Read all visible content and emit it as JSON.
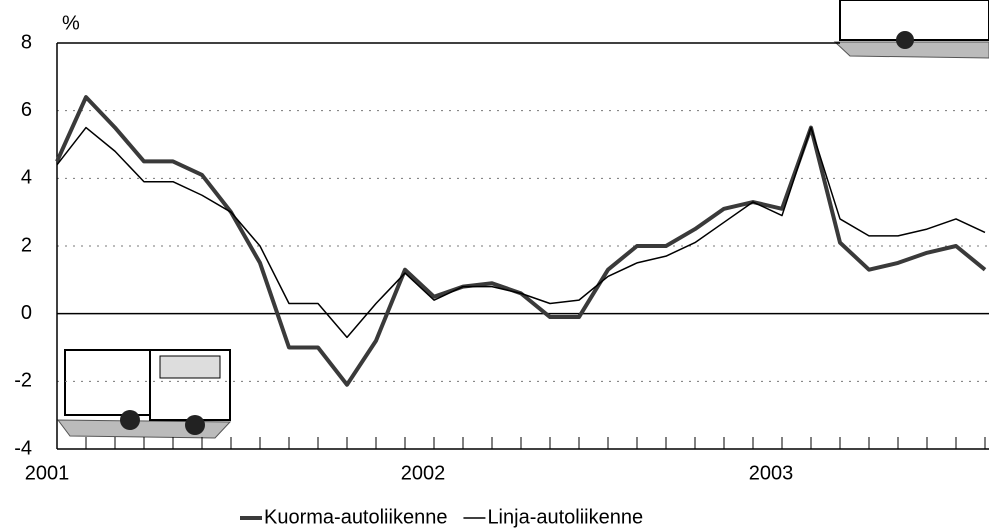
{
  "chart_data": {
    "type": "line",
    "y_label": "%",
    "categories": [
      "2001",
      null,
      null,
      null,
      null,
      null,
      null,
      null,
      null,
      null,
      null,
      null,
      "2002",
      null,
      null,
      null,
      null,
      null,
      null,
      null,
      null,
      null,
      null,
      null,
      "2003",
      null,
      null,
      null,
      null,
      null,
      null,
      null,
      null
    ],
    "series": [
      {
        "name": "Kuorma-autoliikenne",
        "color": "#3a3a3a",
        "values": [
          4.5,
          6.4,
          5.5,
          4.5,
          4.5,
          4.1,
          3.0,
          1.5,
          -1.0,
          -1.0,
          -2.1,
          -0.8,
          1.3,
          0.5,
          0.8,
          0.9,
          0.6,
          -0.1,
          -0.1,
          1.3,
          2.0,
          2.0,
          2.5,
          3.1,
          3.3,
          3.1,
          5.5,
          2.1,
          1.3,
          1.5,
          1.8,
          2.0,
          1.3
        ]
      },
      {
        "name": "Linja-autoliikenne",
        "color": "#000000",
        "values": [
          4.4,
          5.5,
          4.8,
          3.9,
          3.9,
          3.5,
          3.0,
          2.0,
          0.3,
          0.3,
          -0.7,
          0.3,
          1.2,
          0.4,
          0.8,
          0.8,
          0.6,
          0.3,
          0.4,
          1.1,
          1.5,
          1.7,
          2.1,
          2.7,
          3.3,
          2.9,
          5.5,
          2.8,
          2.3,
          2.3,
          2.5,
          2.8,
          2.4
        ]
      }
    ],
    "ylim": [
      -4,
      8
    ],
    "yticks": [
      -4,
      -2,
      0,
      2,
      4,
      6,
      8
    ],
    "grid": true,
    "legend": "bottom"
  }
}
